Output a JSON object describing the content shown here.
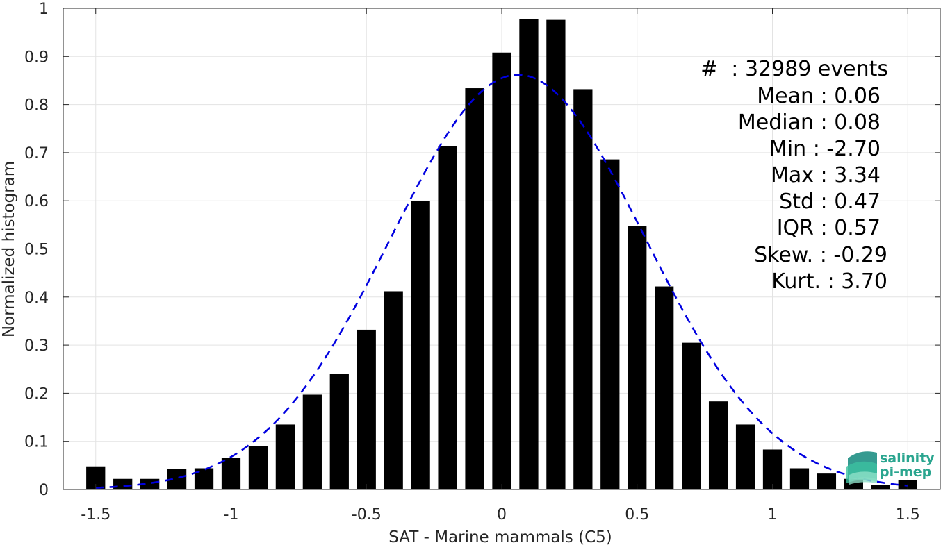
{
  "chart_data": {
    "type": "bar",
    "xlabel": "SAT - Marine mammals (C5)",
    "ylabel": "Normalized histogram",
    "xlim": [
      -1.62,
      1.62
    ],
    "ylim": [
      0,
      1
    ],
    "xticks": [
      -1.5,
      -1,
      -0.5,
      0,
      0.5,
      1,
      1.5
    ],
    "xtick_labels": [
      "-1.5",
      "-1",
      "-0.5",
      "0",
      "0.5",
      "1",
      "1.5"
    ],
    "yticks": [
      0,
      0.1,
      0.2,
      0.3,
      0.4,
      0.5,
      0.6,
      0.7,
      0.8,
      0.9,
      1
    ],
    "ytick_labels": [
      "0",
      "0.1",
      "0.2",
      "0.3",
      "0.4",
      "0.5",
      "0.6",
      "0.7",
      "0.8",
      "0.9",
      "1"
    ],
    "grid": true,
    "bin_width": 0.1,
    "bar_color": "#000000",
    "fit_color": "#0000e0",
    "bars": {
      "x": [
        -1.5,
        -1.4,
        -1.3,
        -1.2,
        -1.1,
        -1.0,
        -0.9,
        -0.8,
        -0.7,
        -0.6,
        -0.5,
        -0.4,
        -0.3,
        -0.2,
        -0.1,
        0.0,
        0.1,
        0.2,
        0.3,
        0.4,
        0.5,
        0.6,
        0.7,
        0.8,
        0.9,
        1.0,
        1.1,
        1.2,
        1.3,
        1.4,
        1.5
      ],
      "values": [
        0.048,
        0.022,
        0.022,
        0.042,
        0.044,
        0.065,
        0.09,
        0.135,
        0.197,
        0.24,
        0.332,
        0.412,
        0.6,
        0.714,
        0.834,
        0.908,
        0.977,
        0.976,
        0.832,
        0.686,
        0.548,
        0.422,
        0.305,
        0.183,
        0.135,
        0.083,
        0.044,
        0.033,
        0.022,
        0.01,
        0.02
      ]
    },
    "fit_curve": {
      "style": "dashed",
      "mean": 0.06,
      "std": 0.47,
      "peak": 0.862,
      "x_range": [
        -1.5,
        1.5
      ]
    },
    "stats": [
      {
        "name": "#",
        "value": "32989 events"
      },
      {
        "name": "Mean",
        "value": "0.06"
      },
      {
        "name": "Median",
        "value": "0.08"
      },
      {
        "name": "Min",
        "value": "-2.70"
      },
      {
        "name": "Max",
        "value": "3.34"
      },
      {
        "name": "Std",
        "value": "0.47"
      },
      {
        "name": "IQR",
        "value": "0.57"
      },
      {
        "name": "Skew.",
        "value": "-0.29"
      },
      {
        "name": "Kurt.",
        "value": "3.70"
      }
    ]
  },
  "stats_text": {
    "count": "#  : 32989 events",
    "mean": "Mean : 0.06",
    "median": "Median : 0.08",
    "min": "Min : -2.70",
    "max": "Max : 3.34",
    "std": "Std : 0.47",
    "iqr": "IQR : 0.57",
    "skew": "Skew. : -0.29",
    "kurt": "Kurt. : 3.70"
  },
  "logo": {
    "line1": "salinity",
    "line2": "pi-mep",
    "color": "#2aa58f"
  }
}
